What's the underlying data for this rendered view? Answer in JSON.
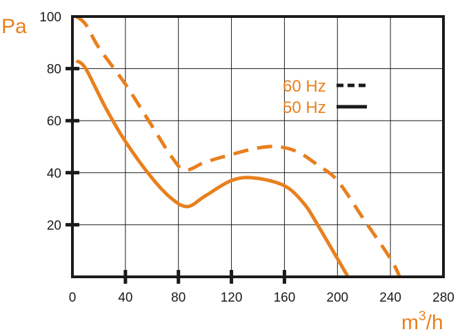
{
  "chart_data": {
    "type": "line",
    "title": "",
    "xlabel": "m3/h",
    "xlabel_main": "m",
    "xlabel_sup": "3",
    "xlabel_tail": "/h",
    "ylabel": "Pa",
    "xlim": [
      0,
      280
    ],
    "ylim": [
      0,
      100
    ],
    "xticks": [
      "0",
      "40",
      "80",
      "120",
      "160",
      "200",
      "240",
      "280"
    ],
    "yticks": [
      "20",
      "40",
      "60",
      "80",
      "100"
    ],
    "grid": true,
    "legend_placement": "top-right",
    "series": [
      {
        "name": "60 Hz",
        "style": "dashed",
        "color": "#e8801e",
        "x": [
          3,
          10,
          20,
          40,
          60,
          75,
          85,
          100,
          120,
          140,
          155,
          170,
          185,
          200,
          220,
          240,
          247
        ],
        "y": [
          100,
          97,
          88,
          74,
          58,
          46,
          41,
          44,
          47,
          49.5,
          50,
          48,
          43,
          37,
          22,
          7,
          0
        ]
      },
      {
        "name": "50 Hz",
        "style": "solid",
        "color": "#e8801e",
        "x": [
          3,
          10,
          25,
          40,
          60,
          75,
          87,
          100,
          120,
          137,
          160,
          175,
          185,
          200,
          208
        ],
        "y": [
          83,
          80,
          65,
          52,
          38,
          30,
          27,
          31,
          37,
          38,
          35,
          28,
          20,
          7,
          0
        ]
      }
    ]
  }
}
